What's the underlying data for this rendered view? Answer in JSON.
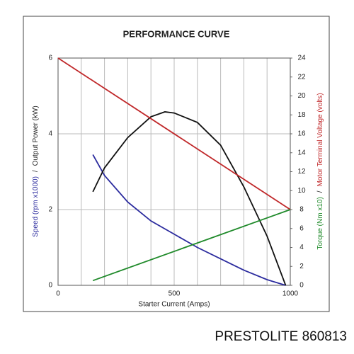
{
  "chart_data": {
    "type": "line",
    "title": "PERFORMANCE CURVE",
    "xlabel": "Starter Current (Amps)",
    "ylabel_parts": [
      {
        "text": "Speed (rpm x1000)",
        "color": "#2b2b9e"
      },
      {
        "text": "/",
        "color": "#222222"
      },
      {
        "text": "Output Power (kW)",
        "color": "#222222"
      }
    ],
    "y2label_parts": [
      {
        "text": "Torque (Nm x10)",
        "color": "#1f8a2a"
      },
      {
        "text": "/",
        "color": "#222222"
      },
      {
        "text": "Motor Terminal Voltage (volts)",
        "color": "#c0282a"
      }
    ],
    "xlim": [
      0,
      1000
    ],
    "xticks": [
      0,
      500,
      1000
    ],
    "x_grid": [
      0,
      100,
      200,
      300,
      400,
      500,
      600,
      700,
      800,
      900,
      1000
    ],
    "ylim": [
      0,
      6
    ],
    "yticks": [
      0,
      2,
      4,
      6
    ],
    "y2lim": [
      0,
      24
    ],
    "y2ticks": [
      0,
      2,
      4,
      6,
      8,
      10,
      12,
      14,
      16,
      18,
      20,
      22,
      24
    ],
    "series": [
      {
        "name": "Speed",
        "color": "#2b2b9e",
        "x": [
          150,
          200,
          300,
          400,
          500,
          600,
          700,
          800,
          900,
          980
        ],
        "values": [
          3.45,
          2.9,
          2.2,
          1.7,
          1.35,
          1.0,
          0.7,
          0.4,
          0.15,
          0
        ]
      },
      {
        "name": "Output Power",
        "color": "#111111",
        "x": [
          150,
          200,
          300,
          400,
          460,
          500,
          600,
          700,
          800,
          900,
          980
        ],
        "values": [
          2.47,
          3.1,
          3.9,
          4.45,
          4.58,
          4.55,
          4.3,
          3.7,
          2.6,
          1.3,
          0
        ]
      },
      {
        "name": "Motor Terminal Voltage",
        "color": "#c0282a",
        "axis": "y2",
        "x": [
          0,
          1000
        ],
        "values": [
          24,
          8
        ]
      },
      {
        "name": "Torque",
        "color": "#1f8a2a",
        "axis": "y2",
        "x": [
          150,
          1000
        ],
        "values": [
          0.5,
          8
        ]
      }
    ]
  },
  "footer": "PRESTOLITE 860813"
}
